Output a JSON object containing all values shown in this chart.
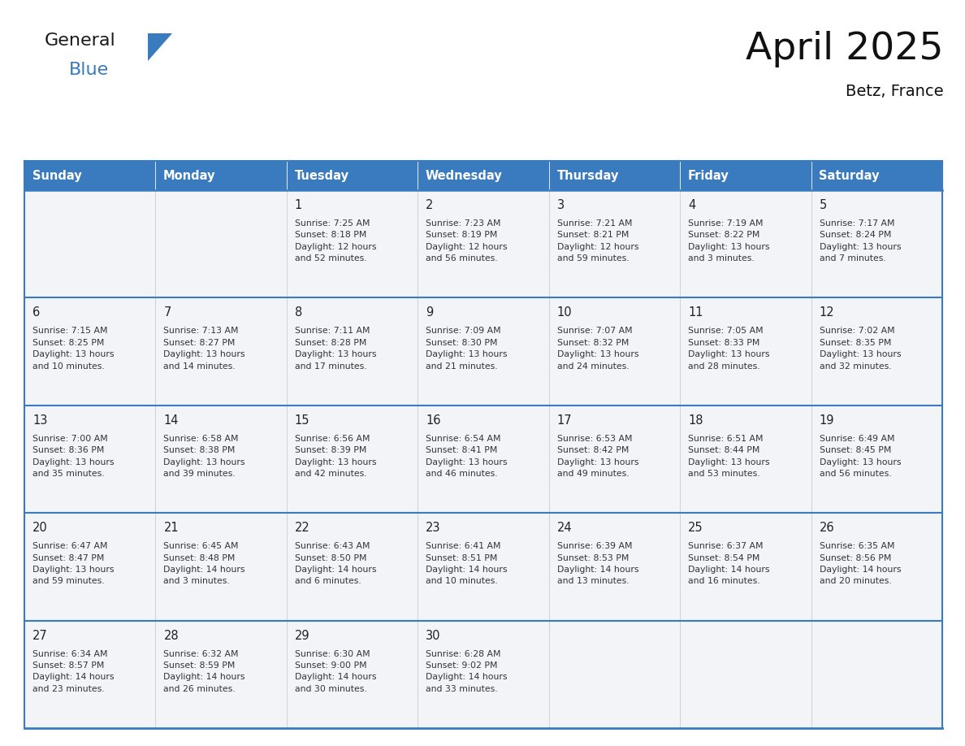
{
  "title": "April 2025",
  "subtitle": "Betz, France",
  "header_color": "#3a7abf",
  "header_text_color": "#ffffff",
  "cell_bg": "#f2f4f7",
  "border_color": "#3a7abf",
  "row_line_color": "#3a7abf",
  "col_line_color": "#cccccc",
  "day_names": [
    "Sunday",
    "Monday",
    "Tuesday",
    "Wednesday",
    "Thursday",
    "Friday",
    "Saturday"
  ],
  "weeks": [
    [
      {
        "day": "",
        "info": ""
      },
      {
        "day": "",
        "info": ""
      },
      {
        "day": "1",
        "info": "Sunrise: 7:25 AM\nSunset: 8:18 PM\nDaylight: 12 hours\nand 52 minutes."
      },
      {
        "day": "2",
        "info": "Sunrise: 7:23 AM\nSunset: 8:19 PM\nDaylight: 12 hours\nand 56 minutes."
      },
      {
        "day": "3",
        "info": "Sunrise: 7:21 AM\nSunset: 8:21 PM\nDaylight: 12 hours\nand 59 minutes."
      },
      {
        "day": "4",
        "info": "Sunrise: 7:19 AM\nSunset: 8:22 PM\nDaylight: 13 hours\nand 3 minutes."
      },
      {
        "day": "5",
        "info": "Sunrise: 7:17 AM\nSunset: 8:24 PM\nDaylight: 13 hours\nand 7 minutes."
      }
    ],
    [
      {
        "day": "6",
        "info": "Sunrise: 7:15 AM\nSunset: 8:25 PM\nDaylight: 13 hours\nand 10 minutes."
      },
      {
        "day": "7",
        "info": "Sunrise: 7:13 AM\nSunset: 8:27 PM\nDaylight: 13 hours\nand 14 minutes."
      },
      {
        "day": "8",
        "info": "Sunrise: 7:11 AM\nSunset: 8:28 PM\nDaylight: 13 hours\nand 17 minutes."
      },
      {
        "day": "9",
        "info": "Sunrise: 7:09 AM\nSunset: 8:30 PM\nDaylight: 13 hours\nand 21 minutes."
      },
      {
        "day": "10",
        "info": "Sunrise: 7:07 AM\nSunset: 8:32 PM\nDaylight: 13 hours\nand 24 minutes."
      },
      {
        "day": "11",
        "info": "Sunrise: 7:05 AM\nSunset: 8:33 PM\nDaylight: 13 hours\nand 28 minutes."
      },
      {
        "day": "12",
        "info": "Sunrise: 7:02 AM\nSunset: 8:35 PM\nDaylight: 13 hours\nand 32 minutes."
      }
    ],
    [
      {
        "day": "13",
        "info": "Sunrise: 7:00 AM\nSunset: 8:36 PM\nDaylight: 13 hours\nand 35 minutes."
      },
      {
        "day": "14",
        "info": "Sunrise: 6:58 AM\nSunset: 8:38 PM\nDaylight: 13 hours\nand 39 minutes."
      },
      {
        "day": "15",
        "info": "Sunrise: 6:56 AM\nSunset: 8:39 PM\nDaylight: 13 hours\nand 42 minutes."
      },
      {
        "day": "16",
        "info": "Sunrise: 6:54 AM\nSunset: 8:41 PM\nDaylight: 13 hours\nand 46 minutes."
      },
      {
        "day": "17",
        "info": "Sunrise: 6:53 AM\nSunset: 8:42 PM\nDaylight: 13 hours\nand 49 minutes."
      },
      {
        "day": "18",
        "info": "Sunrise: 6:51 AM\nSunset: 8:44 PM\nDaylight: 13 hours\nand 53 minutes."
      },
      {
        "day": "19",
        "info": "Sunrise: 6:49 AM\nSunset: 8:45 PM\nDaylight: 13 hours\nand 56 minutes."
      }
    ],
    [
      {
        "day": "20",
        "info": "Sunrise: 6:47 AM\nSunset: 8:47 PM\nDaylight: 13 hours\nand 59 minutes."
      },
      {
        "day": "21",
        "info": "Sunrise: 6:45 AM\nSunset: 8:48 PM\nDaylight: 14 hours\nand 3 minutes."
      },
      {
        "day": "22",
        "info": "Sunrise: 6:43 AM\nSunset: 8:50 PM\nDaylight: 14 hours\nand 6 minutes."
      },
      {
        "day": "23",
        "info": "Sunrise: 6:41 AM\nSunset: 8:51 PM\nDaylight: 14 hours\nand 10 minutes."
      },
      {
        "day": "24",
        "info": "Sunrise: 6:39 AM\nSunset: 8:53 PM\nDaylight: 14 hours\nand 13 minutes."
      },
      {
        "day": "25",
        "info": "Sunrise: 6:37 AM\nSunset: 8:54 PM\nDaylight: 14 hours\nand 16 minutes."
      },
      {
        "day": "26",
        "info": "Sunrise: 6:35 AM\nSunset: 8:56 PM\nDaylight: 14 hours\nand 20 minutes."
      }
    ],
    [
      {
        "day": "27",
        "info": "Sunrise: 6:34 AM\nSunset: 8:57 PM\nDaylight: 14 hours\nand 23 minutes."
      },
      {
        "day": "28",
        "info": "Sunrise: 6:32 AM\nSunset: 8:59 PM\nDaylight: 14 hours\nand 26 minutes."
      },
      {
        "day": "29",
        "info": "Sunrise: 6:30 AM\nSunset: 9:00 PM\nDaylight: 14 hours\nand 30 minutes."
      },
      {
        "day": "30",
        "info": "Sunrise: 6:28 AM\nSunset: 9:02 PM\nDaylight: 14 hours\nand 33 minutes."
      },
      {
        "day": "",
        "info": ""
      },
      {
        "day": "",
        "info": ""
      },
      {
        "day": "",
        "info": ""
      }
    ]
  ]
}
